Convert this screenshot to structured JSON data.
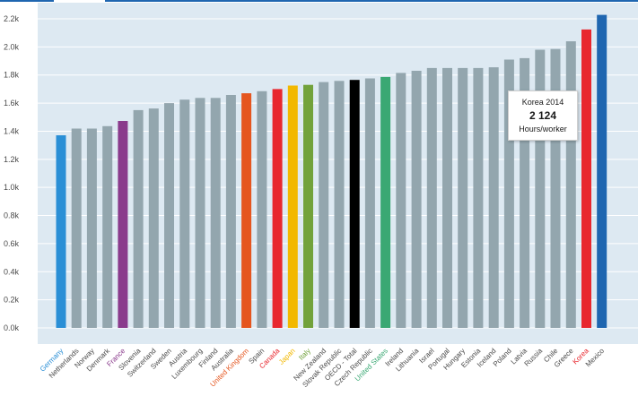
{
  "chart_data": {
    "type": "bar",
    "categories": [
      "Germany",
      "Netherlands",
      "Norway",
      "Denmark",
      "France",
      "Slovenia",
      "Switzerland",
      "Sweden",
      "Austria",
      "Luxembourg",
      "Finland",
      "Australia",
      "United Kingdom",
      "Spain",
      "Canada",
      "Japan",
      "Italy",
      "New Zealand",
      "Slovak Republic",
      "OECD - Total",
      "Czech Republic",
      "United States",
      "Ireland",
      "Lithuania",
      "Israel",
      "Portugal",
      "Hungary",
      "Estonia",
      "Iceland",
      "Poland",
      "Latvia",
      "Russia",
      "Chile",
      "Greece",
      "Korea",
      "Mexico"
    ],
    "values": [
      1371,
      1419,
      1419,
      1436,
      1473,
      1550,
      1562,
      1600,
      1625,
      1637,
      1637,
      1658,
      1670,
      1685,
      1700,
      1725,
      1730,
      1750,
      1758,
      1765,
      1776,
      1786,
      1815,
      1830,
      1850,
      1850,
      1850,
      1850,
      1855,
      1910,
      1920,
      1980,
      1985,
      2040,
      2124,
      2228
    ],
    "bar_colors": [
      "#2a8fd6",
      "#93a6ae",
      "#93a6ae",
      "#93a6ae",
      "#8a3b8c",
      "#93a6ae",
      "#93a6ae",
      "#93a6ae",
      "#93a6ae",
      "#93a6ae",
      "#93a6ae",
      "#93a6ae",
      "#e5561f",
      "#93a6ae",
      "#e8272e",
      "#f2b800",
      "#72a23b",
      "#93a6ae",
      "#93a6ae",
      "#000000",
      "#93a6ae",
      "#3aa873",
      "#93a6ae",
      "#93a6ae",
      "#93a6ae",
      "#93a6ae",
      "#93a6ae",
      "#93a6ae",
      "#93a6ae",
      "#93a6ae",
      "#93a6ae",
      "#93a6ae",
      "#93a6ae",
      "#93a6ae",
      "#e8272e",
      "#1f66b0"
    ],
    "label_colors": [
      "#2a8fd6",
      "#4a4a4a",
      "#4a4a4a",
      "#4a4a4a",
      "#8a3b8c",
      "#4a4a4a",
      "#4a4a4a",
      "#4a4a4a",
      "#4a4a4a",
      "#4a4a4a",
      "#4a4a4a",
      "#4a4a4a",
      "#e5561f",
      "#4a4a4a",
      "#e8272e",
      "#f2b800",
      "#72a23b",
      "#4a4a4a",
      "#4a4a4a",
      "#4a4a4a",
      "#4a4a4a",
      "#3aa873",
      "#4a4a4a",
      "#4a4a4a",
      "#4a4a4a",
      "#4a4a4a",
      "#4a4a4a",
      "#4a4a4a",
      "#4a4a4a",
      "#4a4a4a",
      "#4a4a4a",
      "#4a4a4a",
      "#4a4a4a",
      "#4a4a4a",
      "#e8272e",
      "#4a4a4a"
    ],
    "y_ticks": [
      0,
      200,
      400,
      600,
      800,
      1000,
      1200,
      1400,
      1600,
      1800,
      2000,
      2200
    ],
    "y_tick_labels": [
      "0.0k",
      "0.2k",
      "0.4k",
      "0.6k",
      "0.8k",
      "1.0k",
      "1.2k",
      "1.4k",
      "1.6k",
      "1.8k",
      "2.0k",
      "2.2k"
    ],
    "ylim": [
      0,
      2200
    ],
    "grid": true,
    "plot_background": "#dde9f2",
    "grid_color": "#ffffff",
    "top_strip_color": "#1f66b0",
    "title": "",
    "xlabel": "",
    "ylabel": ""
  },
  "tooltip": {
    "title": "Korea 2014",
    "value": "2 124",
    "unit": "Hours/worker"
  }
}
